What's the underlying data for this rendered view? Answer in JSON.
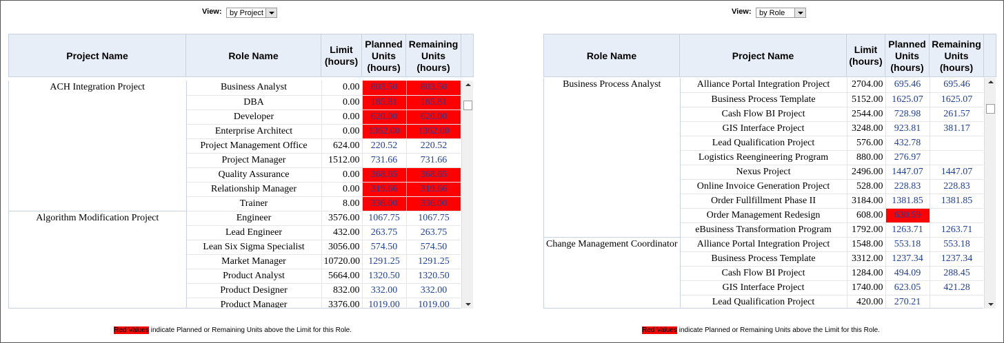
{
  "panels": [
    {
      "view": {
        "label": "View:",
        "value": "by Project"
      },
      "columns": [
        "Project Name",
        "Role Name",
        "Limit (hours)",
        "Planned Units (hours)",
        "Remaining Units (hours)"
      ],
      "groups": [
        {
          "name": "ACH Integration Project",
          "rows": [
            {
              "name": "Business Analyst",
              "limit": "0.00",
              "planned": "803.50",
              "remaining": "803.50",
              "over_limit": true
            },
            {
              "name": "DBA",
              "limit": "0.00",
              "planned": "185.81",
              "remaining": "185.81",
              "over_limit": true
            },
            {
              "name": "Developer",
              "limit": "0.00",
              "planned": "620.00",
              "remaining": "620.00",
              "over_limit": true
            },
            {
              "name": "Enterprise Architect",
              "limit": "0.00",
              "planned": "1362.00",
              "remaining": "1362.00",
              "over_limit": true
            },
            {
              "name": "Project Management Office",
              "limit": "624.00",
              "planned": "220.52",
              "remaining": "220.52",
              "over_limit": false
            },
            {
              "name": "Project Manager",
              "limit": "1512.00",
              "planned": "731.66",
              "remaining": "731.66",
              "over_limit": false
            },
            {
              "name": "Quality Assurance",
              "limit": "0.00",
              "planned": "368.65",
              "remaining": "368.65",
              "over_limit": true
            },
            {
              "name": "Relationship Manager",
              "limit": "0.00",
              "planned": "319.66",
              "remaining": "319.66",
              "over_limit": true
            },
            {
              "name": "Trainer",
              "limit": "8.00",
              "planned": "336.00",
              "remaining": "336.00",
              "over_limit": true
            }
          ]
        },
        {
          "name": "Algorithm Modification Project",
          "rows": [
            {
              "name": "Engineer",
              "limit": "3576.00",
              "planned": "1067.75",
              "remaining": "1067.75",
              "over_limit": false
            },
            {
              "name": "Lead Engineer",
              "limit": "432.00",
              "planned": "263.75",
              "remaining": "263.75",
              "over_limit": false
            },
            {
              "name": "Lean Six Sigma Specialist",
              "limit": "3056.00",
              "planned": "574.50",
              "remaining": "574.50",
              "over_limit": false
            },
            {
              "name": "Market Manager",
              "limit": "10720.00",
              "planned": "1291.25",
              "remaining": "1291.25",
              "over_limit": false
            },
            {
              "name": "Product Analyst",
              "limit": "5664.00",
              "planned": "1320.50",
              "remaining": "1320.50",
              "over_limit": false
            },
            {
              "name": "Product Designer",
              "limit": "832.00",
              "planned": "332.00",
              "remaining": "332.00",
              "over_limit": false
            },
            {
              "name": "Product Manager",
              "limit": "3376.00",
              "planned": "1019.00",
              "remaining": "1019.00",
              "over_limit": false
            }
          ]
        }
      ],
      "legend": {
        "highlight": "Red Values",
        "text": "indicate Planned or Remaining Units above the Limit for this Role."
      }
    },
    {
      "view": {
        "label": "View:",
        "value": "by Role"
      },
      "columns": [
        "Role Name",
        "Project Name",
        "Limit (hours)",
        "Planned Units (hours)",
        "Remaining Units (hours)"
      ],
      "groups": [
        {
          "name": "Business Process Analyst",
          "rows": [
            {
              "name": "Alliance Portal Integration Project",
              "limit": "2704.00",
              "planned": "695.46",
              "remaining": "695.46",
              "over_limit": false
            },
            {
              "name": "Business Process Template",
              "limit": "5152.00",
              "planned": "1625.07",
              "remaining": "1625.07",
              "over_limit": false
            },
            {
              "name": "Cash Flow BI Project",
              "limit": "2544.00",
              "planned": "728.98",
              "remaining": "261.57",
              "over_limit": false
            },
            {
              "name": "GIS Interface Project",
              "limit": "3248.00",
              "planned": "923.81",
              "remaining": "381.17",
              "over_limit": false
            },
            {
              "name": "Lead Qualification Project",
              "limit": "576.00",
              "planned": "432.78",
              "remaining": null,
              "over_limit": false
            },
            {
              "name": "Logistics Reengineering Program",
              "limit": "880.00",
              "planned": "276.97",
              "remaining": null,
              "over_limit": false
            },
            {
              "name": "Nexus Project",
              "limit": "2496.00",
              "planned": "1447.07",
              "remaining": "1447.07",
              "over_limit": false
            },
            {
              "name": "Online Invoice Generation Project",
              "limit": "528.00",
              "planned": "228.83",
              "remaining": "228.83",
              "over_limit": false
            },
            {
              "name": "Order Fullfillment Phase II",
              "limit": "3184.00",
              "planned": "1381.85",
              "remaining": "1381.85",
              "over_limit": false
            },
            {
              "name": "Order Management Redesign",
              "limit": "608.00",
              "planned": "630.59",
              "remaining": null,
              "over_limit": true
            },
            {
              "name": "eBusiness Transformation Program",
              "limit": "1792.00",
              "planned": "1263.71",
              "remaining": "1263.71",
              "over_limit": false
            }
          ]
        },
        {
          "name": "Change Management Coordinator",
          "rows": [
            {
              "name": "Alliance Portal Integration Project",
              "limit": "1548.00",
              "planned": "553.18",
              "remaining": "553.18",
              "over_limit": false
            },
            {
              "name": "Business Process Template",
              "limit": "3312.00",
              "planned": "1237.34",
              "remaining": "1237.34",
              "over_limit": false
            },
            {
              "name": "Cash Flow BI Project",
              "limit": "1284.00",
              "planned": "494.09",
              "remaining": "288.45",
              "over_limit": false
            },
            {
              "name": "GIS Interface Project",
              "limit": "1740.00",
              "planned": "623.05",
              "remaining": "421.28",
              "over_limit": false
            },
            {
              "name": "Lead Qualification Project",
              "limit": "420.00",
              "planned": "270.21",
              "remaining": null,
              "over_limit": false
            }
          ]
        }
      ],
      "legend": {
        "highlight": "Red Values",
        "text": "indicate Planned or Remaining Units above the Limit for this Role."
      }
    }
  ]
}
